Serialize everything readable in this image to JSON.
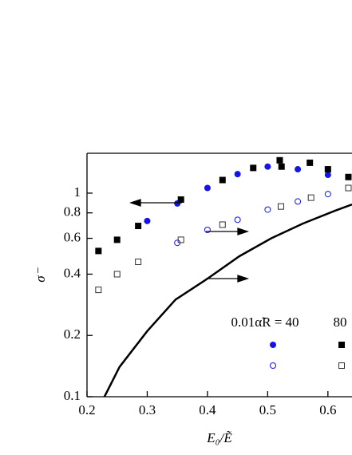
{
  "chart_data": {
    "type": "scatter",
    "xlabel": "E₀/Ẽ",
    "ylabel": "σ⁻",
    "xlim": [
      0.2,
      0.64
    ],
    "xticks": [
      0.2,
      0.3,
      0.4,
      0.5,
      0.6
    ],
    "ylim": [
      0.1,
      1.57
    ],
    "yticks": [
      0.1,
      0.2,
      0.4,
      0.6,
      0.8,
      1
    ],
    "log_y": true,
    "legend_labels": [
      "0.01α̃R = 40",
      "80"
    ],
    "series": [
      {
        "marker": "filled-circle",
        "color": "#1414e6",
        "x": [
          0.3,
          0.35,
          0.4,
          0.45,
          0.5,
          0.55,
          0.6
        ],
        "values": [
          0.73,
          0.89,
          1.06,
          1.24,
          1.35,
          1.31,
          1.23
        ]
      },
      {
        "marker": "filled-square",
        "color": "#000000",
        "x": [
          0.219,
          0.25,
          0.285,
          0.356,
          0.425,
          0.476,
          0.52,
          0.523,
          0.57,
          0.6,
          0.634
        ],
        "values": [
          0.52,
          0.59,
          0.69,
          0.93,
          1.16,
          1.33,
          1.45,
          1.35,
          1.41,
          1.31,
          1.2
        ]
      },
      {
        "marker": "open-circle",
        "color": "#1414e6",
        "x": [
          0.35,
          0.4,
          0.45,
          0.5,
          0.55,
          0.6
        ],
        "values": [
          0.57,
          0.66,
          0.74,
          0.83,
          0.91,
          0.99
        ]
      },
      {
        "marker": "open-square",
        "color": "#333333",
        "x": [
          0.219,
          0.25,
          0.285,
          0.356,
          0.425,
          0.522,
          0.572,
          0.634
        ],
        "values": [
          0.335,
          0.4,
          0.46,
          0.59,
          0.7,
          0.86,
          0.95,
          1.06
        ]
      },
      {
        "marker": "line",
        "color": "#000000",
        "x": [
          0.229,
          0.254,
          0.3,
          0.347,
          0.4,
          0.453,
          0.506,
          0.559,
          0.612,
          0.64
        ],
        "values": [
          0.1,
          0.14,
          0.21,
          0.3,
          0.38,
          0.49,
          0.6,
          0.71,
          0.82,
          0.88
        ]
      }
    ]
  }
}
